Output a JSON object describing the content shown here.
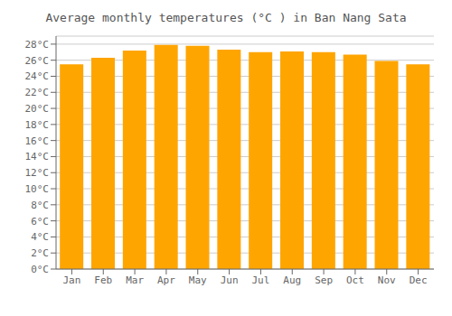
{
  "chart_data": {
    "type": "bar",
    "title": "Average monthly temperatures (°C ) in Ban Nang Sata",
    "categories": [
      "Jan",
      "Feb",
      "Mar",
      "Apr",
      "May",
      "Jun",
      "Jul",
      "Aug",
      "Sep",
      "Oct",
      "Nov",
      "Dec"
    ],
    "values": [
      25.5,
      26.3,
      27.2,
      27.9,
      27.8,
      27.3,
      27.0,
      27.1,
      27.0,
      26.7,
      25.9,
      25.5
    ],
    "color": "#FFA500",
    "ylim": [
      0,
      29
    ],
    "yticks": [
      {
        "value": 0,
        "label": "0°C"
      },
      {
        "value": 2,
        "label": "2°C"
      },
      {
        "value": 4,
        "label": "4°C"
      },
      {
        "value": 6,
        "label": "6°C"
      },
      {
        "value": 8,
        "label": "8°C"
      },
      {
        "value": 10,
        "label": "10°C"
      },
      {
        "value": 12,
        "label": "12°C"
      },
      {
        "value": 14,
        "label": "14°C"
      },
      {
        "value": 16,
        "label": "16°C"
      },
      {
        "value": 18,
        "label": "18°C"
      },
      {
        "value": 20,
        "label": "20°C"
      },
      {
        "value": 22,
        "label": "22°C"
      },
      {
        "value": 24,
        "label": "24°C"
      },
      {
        "value": 26,
        "label": "26°C"
      },
      {
        "value": 28,
        "label": "28°C"
      }
    ],
    "grid": true
  }
}
